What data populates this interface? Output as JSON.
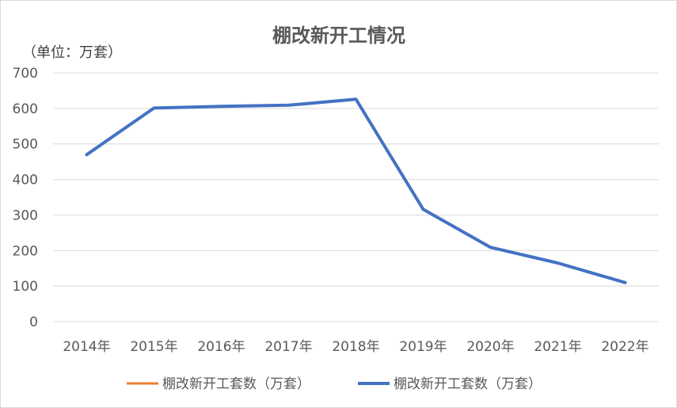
{
  "chart_data": {
    "type": "line",
    "title": "棚改新开工情况",
    "unit_label": "（单位：万套）",
    "categories": [
      "2014年",
      "2015年",
      "2016年",
      "2017年",
      "2018年",
      "2019年",
      "2020年",
      "2021年",
      "2022年"
    ],
    "series": [
      {
        "name": "棚改新开工套数（万套）",
        "color": "#ED7D31",
        "values": [
          null,
          null,
          null,
          null,
          null,
          null,
          null,
          null,
          null
        ]
      },
      {
        "name": "棚改新开工套数（万套）",
        "color": "#4472C4",
        "values": [
          470,
          601,
          606,
          609,
          626,
          316,
          209,
          165,
          110
        ]
      }
    ],
    "y_ticks": [
      "0",
      "100",
      "200",
      "300",
      "400",
      "500",
      "600",
      "700"
    ],
    "ylim": [
      0,
      700
    ],
    "grid": true,
    "legend_position": "bottom"
  }
}
